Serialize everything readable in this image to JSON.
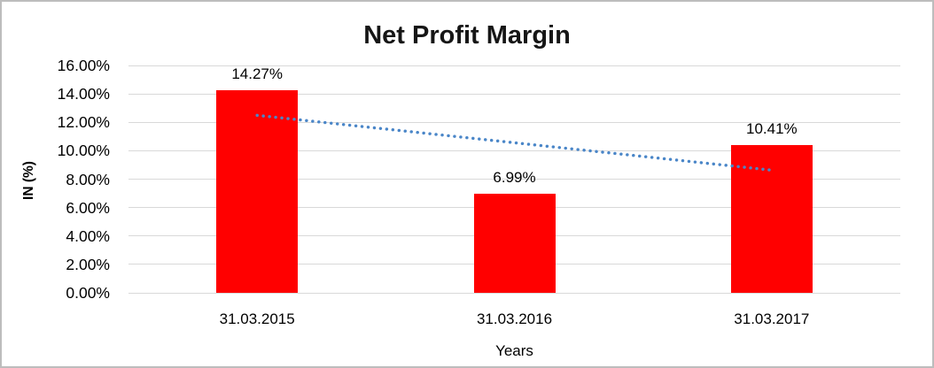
{
  "chart_data": {
    "type": "bar",
    "title": "Net Profit Margin",
    "xlabel": "Years",
    "ylabel": "IN (%)",
    "categories": [
      "31.03.2015",
      "31.03.2016",
      "31.03.2017"
    ],
    "values": [
      14.27,
      6.99,
      10.41
    ],
    "data_labels": [
      "14.27%",
      "6.99%",
      "10.41%"
    ],
    "ylim": [
      0,
      16
    ],
    "ytick_step": 2,
    "ytick_labels": [
      "0.00%",
      "2.00%",
      "4.00%",
      "6.00%",
      "8.00%",
      "10.00%",
      "12.00%",
      "14.00%",
      "16.00%"
    ],
    "grid": true,
    "legend": false,
    "bar_color": "#FF0000",
    "text_color": "#000000",
    "gridline_color": "#D9D9D9",
    "trendline": {
      "type": "linear",
      "style": "dotted",
      "color": "#4A86C8",
      "start_value": 12.49,
      "end_value": 8.63
    }
  }
}
